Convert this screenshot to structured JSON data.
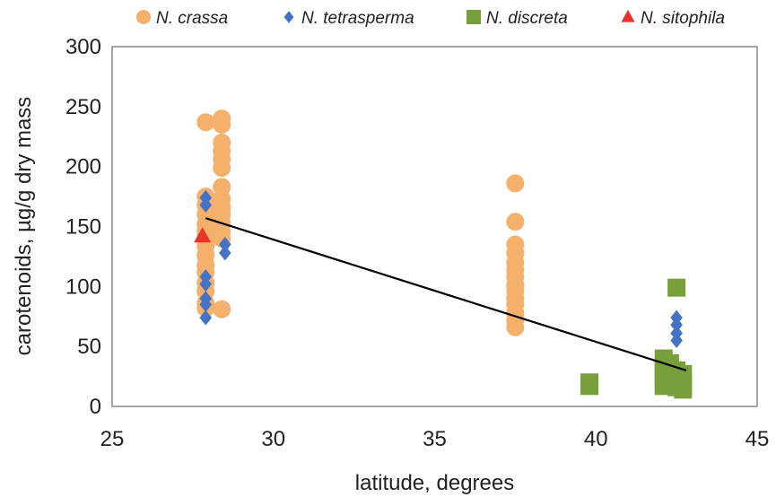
{
  "chart_data": {
    "type": "scatter",
    "xlabel": "latitude, degrees",
    "ylabel": "carotenoids, µg/g dry mass",
    "xlim": [
      25,
      45
    ],
    "ylim": [
      0,
      300
    ],
    "xticks": [
      "25",
      "30",
      "35",
      "40",
      "45"
    ],
    "yticks": [
      "0",
      "50",
      "100",
      "150",
      "200",
      "250",
      "300"
    ],
    "grid": false,
    "legend_position": "top",
    "series": [
      {
        "name": "N. crassa",
        "marker": "circle",
        "color": "#F5B06B",
        "points": [
          [
            27.9,
            237
          ],
          [
            27.9,
            175
          ],
          [
            27.9,
            168
          ],
          [
            27.9,
            160
          ],
          [
            27.9,
            152
          ],
          [
            27.9,
            146
          ],
          [
            27.9,
            140
          ],
          [
            27.9,
            134
          ],
          [
            27.9,
            126
          ],
          [
            27.9,
            118
          ],
          [
            27.9,
            112
          ],
          [
            27.9,
            103
          ],
          [
            27.9,
            96
          ],
          [
            27.9,
            86
          ],
          [
            27.9,
            82
          ],
          [
            28.4,
            240
          ],
          [
            28.4,
            235
          ],
          [
            28.4,
            220
          ],
          [
            28.4,
            213
          ],
          [
            28.4,
            206
          ],
          [
            28.4,
            199
          ],
          [
            28.4,
            183
          ],
          [
            28.4,
            173
          ],
          [
            28.4,
            166
          ],
          [
            28.4,
            160
          ],
          [
            28.4,
            153
          ],
          [
            28.4,
            146
          ],
          [
            28.4,
            140
          ],
          [
            28.4,
            81
          ],
          [
            37.5,
            186
          ],
          [
            37.5,
            154
          ],
          [
            37.5,
            135
          ],
          [
            37.5,
            128
          ],
          [
            37.5,
            120
          ],
          [
            37.5,
            114
          ],
          [
            37.5,
            108
          ],
          [
            37.5,
            101
          ],
          [
            37.5,
            96
          ],
          [
            37.5,
            90
          ],
          [
            37.5,
            85
          ],
          [
            37.5,
            78
          ],
          [
            37.5,
            72
          ],
          [
            37.5,
            66
          ]
        ]
      },
      {
        "name": "N. tetrasperma",
        "marker": "diamond",
        "color": "#4472C4",
        "points": [
          [
            27.9,
            174
          ],
          [
            27.9,
            168
          ],
          [
            27.9,
            108
          ],
          [
            27.9,
            102
          ],
          [
            27.9,
            90
          ],
          [
            27.9,
            85
          ],
          [
            27.9,
            74
          ],
          [
            28.5,
            135
          ],
          [
            28.5,
            128
          ],
          [
            42.5,
            74
          ],
          [
            42.5,
            68
          ],
          [
            42.5,
            61
          ],
          [
            42.5,
            55
          ]
        ]
      },
      {
        "name": "N. discreta",
        "marker": "square",
        "color": "#77A03C",
        "points": [
          [
            39.8,
            20
          ],
          [
            39.8,
            17
          ],
          [
            42.1,
            40
          ],
          [
            42.1,
            34
          ],
          [
            42.1,
            28
          ],
          [
            42.1,
            22
          ],
          [
            42.1,
            17
          ],
          [
            42.3,
            36
          ],
          [
            42.3,
            26
          ],
          [
            42.3,
            18
          ],
          [
            42.5,
            99
          ],
          [
            42.5,
            30
          ],
          [
            42.5,
            24
          ],
          [
            42.5,
            16
          ],
          [
            42.7,
            27
          ],
          [
            42.7,
            19
          ],
          [
            42.7,
            14
          ]
        ]
      },
      {
        "name": "N. sitophila",
        "marker": "triangle",
        "color": "#E8332A",
        "points": [
          [
            27.8,
            142
          ]
        ]
      }
    ],
    "trendline": {
      "x": [
        27.9,
        42.8
      ],
      "y": [
        157,
        30
      ],
      "color": "#000000"
    }
  }
}
